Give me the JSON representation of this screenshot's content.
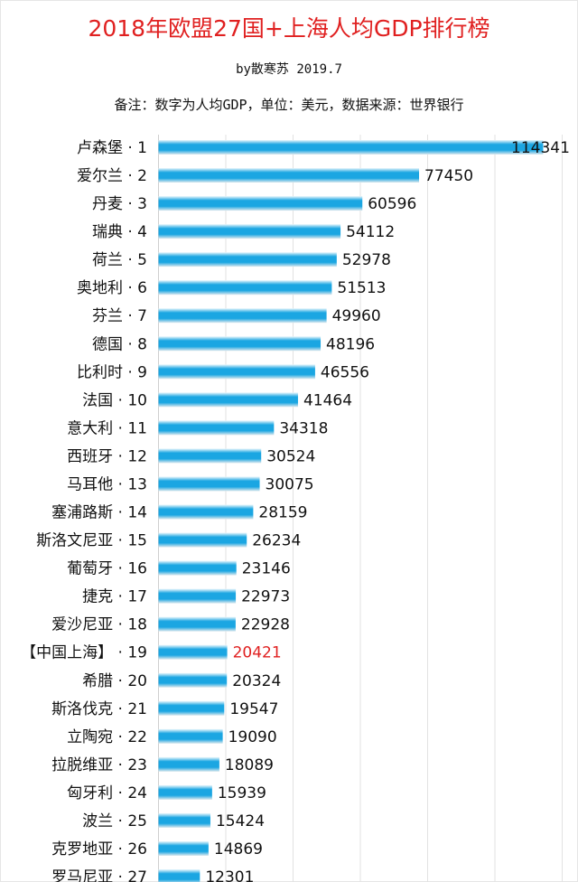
{
  "chart_data": {
    "type": "bar",
    "orientation": "horizontal",
    "title": "2018年欧盟27国+上海人均GDP排行榜",
    "subtitle": "by散寒苏 2019.7",
    "note": "备注：数字为人均GDP，单位：美元，数据来源：世界银行",
    "xlim": [
      0,
      120000
    ],
    "grid": true,
    "colors": {
      "bar": "#1ba6e2",
      "highlight_label": "#e02020",
      "label": "#111111"
    },
    "highlight": "【中国上海】",
    "categories": [
      "卢森堡",
      "爱尔兰",
      "丹麦",
      "瑞典",
      "荷兰",
      "奥地利",
      "芬兰",
      "德国",
      "比利时",
      "法国",
      "意大利",
      "西班牙",
      "马耳他",
      "塞浦路斯",
      "斯洛文尼亚",
      "葡萄牙",
      "捷克",
      "爱沙尼亚",
      "【中国上海】",
      "希腊",
      "斯洛伐克",
      "立陶宛",
      "拉脱维亚",
      "匈牙利",
      "波兰",
      "克罗地亚",
      "罗马尼亚"
    ],
    "ranks": [
      1,
      2,
      3,
      4,
      5,
      6,
      7,
      8,
      9,
      10,
      11,
      12,
      13,
      14,
      15,
      16,
      17,
      18,
      19,
      20,
      21,
      22,
      23,
      24,
      25,
      26,
      27
    ],
    "values": [
      114341,
      77450,
      60596,
      54112,
      52978,
      51513,
      49960,
      48196,
      46556,
      41464,
      34318,
      30524,
      30075,
      28159,
      26234,
      23146,
      22973,
      22928,
      20421,
      20324,
      19547,
      19090,
      18089,
      15939,
      15424,
      14869,
      12301
    ]
  }
}
